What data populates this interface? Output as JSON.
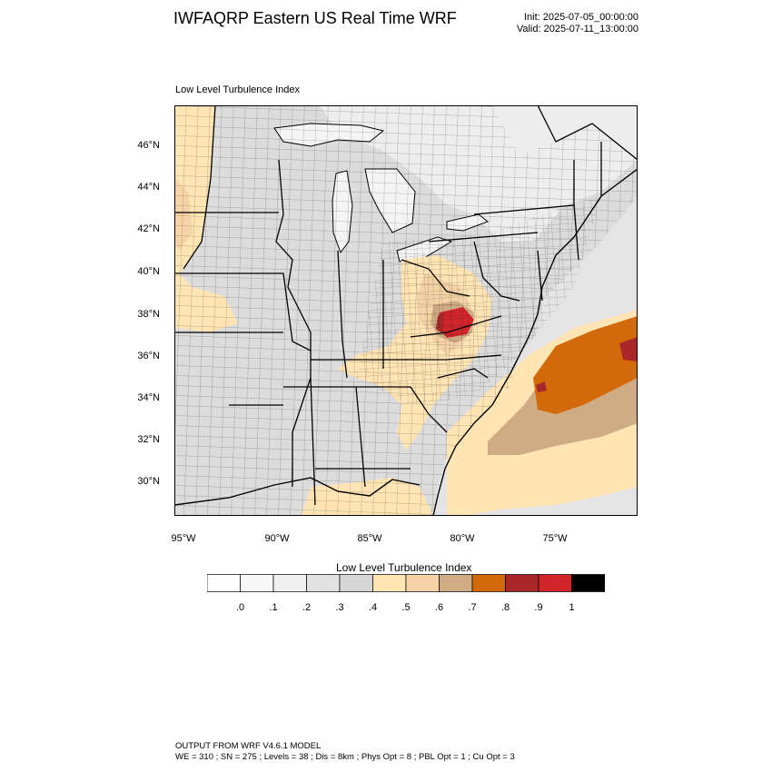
{
  "header": {
    "title": "IWFAQRP Eastern US Real Time WRF",
    "init": "Init: 2025-07-05_00:00:00",
    "valid": "Valid: 2025-07-11_13:00:00"
  },
  "panel": {
    "label": "Low Level Turbulence Index"
  },
  "map": {
    "lat_labels": [
      "46°N",
      "44°N",
      "42°N",
      "40°N",
      "38°N",
      "36°N",
      "34°N",
      "32°N",
      "30°N"
    ],
    "lon_labels": [
      "95°W",
      "90°W",
      "85°W",
      "80°W",
      "75°W"
    ]
  },
  "colorbar": {
    "title": "Low Level Turbulence Index",
    "ticks": [
      ".0",
      ".1",
      ".2",
      ".3",
      ".4",
      ".5",
      ".6",
      ".7",
      ".8",
      ".9",
      "1"
    ],
    "colors": [
      "#ffffff",
      "#f7f7f7",
      "#efefef",
      "#e2e2e2",
      "#d6d6d6",
      "#ffe4b4",
      "#f5d3a6",
      "#cfac84",
      "#d2690a",
      "#a8282a",
      "#d2242b",
      "#000000"
    ]
  },
  "footer": {
    "line1": "OUTPUT FROM WRF V4.6.1 MODEL",
    "line2": "WE = 310 ; SN = 275 ; Levels = 38 ; Dis = 8km ; Phys Opt = 8 ; PBL Opt = 1 ; Cu Opt = 3"
  }
}
